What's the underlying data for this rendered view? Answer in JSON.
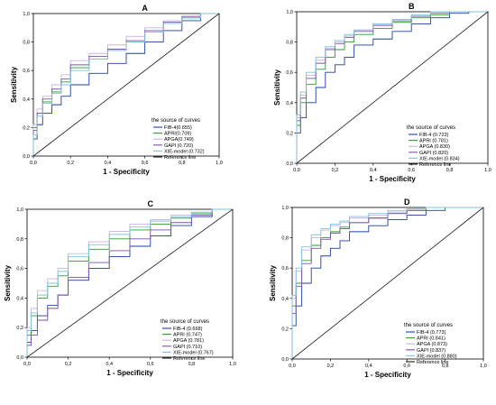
{
  "figure": {
    "title": "",
    "colors": {
      "FIB-4": "#1f3fa8",
      "APRI": "#2e9a2e",
      "APGA": "#c8b3e0",
      "GAPI": "#7a52a8",
      "XIE-model": "#7fc3dc",
      "Reference line": "#1a1a1a"
    }
  },
  "chart_data": [
    {
      "type": "line",
      "panel": "A",
      "xlabel": "1 - Specificity",
      "ylabel": "Sensitivity",
      "xlim": [
        0,
        1
      ],
      "ylim": [
        0,
        1
      ],
      "xticks": [
        "0,0",
        "0,2",
        "0,4",
        "0,6",
        "0,8",
        "1,0"
      ],
      "yticks": [
        "0,0",
        "0,2",
        "0,4",
        "0,6",
        "0,8",
        "1,0"
      ],
      "legend_title": "the source of curves",
      "legend_position": "bottom-right",
      "series": [
        {
          "name": "FIB-4(0.655)",
          "key": "FIB-4",
          "x": [
            0,
            0.02,
            0.05,
            0.1,
            0.15,
            0.2,
            0.3,
            0.4,
            0.5,
            0.6,
            0.7,
            0.8,
            0.9,
            1.0
          ],
          "y": [
            0,
            0.12,
            0.22,
            0.3,
            0.36,
            0.42,
            0.5,
            0.58,
            0.65,
            0.72,
            0.8,
            0.88,
            0.95,
            1.0
          ]
        },
        {
          "name": "APRI(0.709)",
          "key": "APRI",
          "x": [
            0,
            0.02,
            0.05,
            0.1,
            0.15,
            0.2,
            0.3,
            0.4,
            0.5,
            0.6,
            0.7,
            0.8,
            0.9,
            1.0
          ],
          "y": [
            0,
            0.2,
            0.3,
            0.38,
            0.45,
            0.52,
            0.62,
            0.68,
            0.74,
            0.8,
            0.87,
            0.93,
            0.97,
            1.0
          ]
        },
        {
          "name": "APGA(0.749)",
          "key": "APGA",
          "x": [
            0,
            0.02,
            0.05,
            0.1,
            0.15,
            0.2,
            0.3,
            0.4,
            0.5,
            0.6,
            0.7,
            0.8,
            0.9,
            1.0
          ],
          "y": [
            0,
            0.22,
            0.33,
            0.42,
            0.5,
            0.57,
            0.67,
            0.72,
            0.78,
            0.84,
            0.9,
            0.95,
            0.98,
            1.0
          ]
        },
        {
          "name": "GAPI (0.720)",
          "key": "GAPI",
          "x": [
            0,
            0.02,
            0.05,
            0.1,
            0.15,
            0.2,
            0.3,
            0.4,
            0.5,
            0.6,
            0.7,
            0.8,
            0.9,
            1.0
          ],
          "y": [
            0,
            0.18,
            0.3,
            0.4,
            0.47,
            0.54,
            0.64,
            0.7,
            0.75,
            0.81,
            0.88,
            0.94,
            0.98,
            1.0
          ]
        },
        {
          "name": "XIE-model (0.732)",
          "key": "XIE-model",
          "x": [
            0,
            0.02,
            0.05,
            0.1,
            0.15,
            0.2,
            0.3,
            0.4,
            0.5,
            0.6,
            0.7,
            0.8,
            0.9,
            1.0
          ],
          "y": [
            0,
            0.15,
            0.28,
            0.37,
            0.44,
            0.5,
            0.6,
            0.68,
            0.74,
            0.8,
            0.87,
            0.93,
            0.97,
            1.0
          ]
        },
        {
          "name": "Reference line",
          "key": "Reference line",
          "x": [
            0,
            1
          ],
          "y": [
            0,
            1
          ]
        }
      ]
    },
    {
      "type": "line",
      "panel": "B",
      "xlabel": "1 - Specificity",
      "ylabel": "Sensitivity",
      "xlim": [
        0,
        1
      ],
      "ylim": [
        0,
        1
      ],
      "xticks": [
        "0,0",
        "0,2",
        "0,4",
        "0,6",
        "0,8",
        "1,0"
      ],
      "yticks": [
        "0,0",
        "0,2",
        "0,4",
        "0,6",
        "0,8",
        "1,0"
      ],
      "legend_title": "the source of curves",
      "legend_position": "bottom-right",
      "series": [
        {
          "name": "FIB-4 (0.723)",
          "key": "FIB-4",
          "x": [
            0,
            0.02,
            0.05,
            0.1,
            0.15,
            0.2,
            0.25,
            0.3,
            0.4,
            0.5,
            0.6,
            0.7,
            0.8,
            0.9,
            1.0
          ],
          "y": [
            0,
            0.2,
            0.3,
            0.4,
            0.5,
            0.6,
            0.65,
            0.7,
            0.78,
            0.82,
            0.87,
            0.92,
            0.96,
            0.99,
            1.0
          ]
        },
        {
          "name": "APRI (0.781)",
          "key": "APRI",
          "x": [
            0,
            0.02,
            0.05,
            0.1,
            0.15,
            0.2,
            0.25,
            0.3,
            0.4,
            0.5,
            0.6,
            0.7,
            0.8,
            0.9,
            1.0
          ],
          "y": [
            0,
            0.25,
            0.4,
            0.52,
            0.62,
            0.7,
            0.75,
            0.8,
            0.85,
            0.89,
            0.93,
            0.96,
            0.98,
            1.0,
            1.0
          ]
        },
        {
          "name": "APGA (0.830)",
          "key": "APGA",
          "x": [
            0,
            0.02,
            0.05,
            0.1,
            0.15,
            0.2,
            0.25,
            0.3,
            0.4,
            0.5,
            0.6,
            0.7,
            0.8,
            0.9,
            1.0
          ],
          "y": [
            0,
            0.3,
            0.45,
            0.58,
            0.68,
            0.76,
            0.8,
            0.84,
            0.88,
            0.92,
            0.95,
            0.97,
            1.0,
            1.0,
            1.0
          ]
        },
        {
          "name": "GAPI (0.820)",
          "key": "GAPI",
          "x": [
            0,
            0.02,
            0.05,
            0.1,
            0.15,
            0.2,
            0.25,
            0.3,
            0.4,
            0.5,
            0.6,
            0.7,
            0.8,
            0.9,
            1.0
          ],
          "y": [
            0,
            0.28,
            0.43,
            0.56,
            0.66,
            0.75,
            0.79,
            0.83,
            0.87,
            0.91,
            0.94,
            0.97,
            0.99,
            1.0,
            1.0
          ]
        },
        {
          "name": "XIE-model (0.834)",
          "key": "XIE-model",
          "x": [
            0,
            0.02,
            0.05,
            0.1,
            0.15,
            0.2,
            0.25,
            0.3,
            0.4,
            0.5,
            0.6,
            0.7,
            0.8,
            0.9,
            1.0
          ],
          "y": [
            0,
            0.32,
            0.47,
            0.6,
            0.7,
            0.77,
            0.81,
            0.85,
            0.88,
            0.92,
            0.95,
            0.98,
            1.0,
            1.0,
            1.0
          ]
        },
        {
          "name": "Reference line",
          "key": "Reference line",
          "x": [
            0,
            1
          ],
          "y": [
            0,
            1
          ]
        }
      ]
    },
    {
      "type": "line",
      "panel": "C",
      "xlabel": "1 - Specificity",
      "ylabel": "Sensitivity",
      "xlim": [
        0,
        1
      ],
      "ylim": [
        0,
        1
      ],
      "xticks": [
        "0,0",
        "0,2",
        "0,4",
        "0,6",
        "0,8",
        "1,0"
      ],
      "yticks": [
        "0,0",
        "0,2",
        "0,4",
        "0,6",
        "0,8",
        "1,0"
      ],
      "legend_title": "the source of curves",
      "legend_position": "bottom-right",
      "series": [
        {
          "name": "FIB-4 (0.668)",
          "key": "FIB-4",
          "x": [
            0,
            0.02,
            0.05,
            0.1,
            0.15,
            0.2,
            0.3,
            0.4,
            0.5,
            0.6,
            0.7,
            0.8,
            0.9,
            1.0
          ],
          "y": [
            0,
            0.1,
            0.18,
            0.28,
            0.35,
            0.42,
            0.52,
            0.6,
            0.68,
            0.75,
            0.82,
            0.89,
            0.95,
            1.0
          ]
        },
        {
          "name": "APRI (0.747)",
          "key": "APRI",
          "x": [
            0,
            0.02,
            0.05,
            0.1,
            0.15,
            0.2,
            0.3,
            0.4,
            0.5,
            0.6,
            0.7,
            0.8,
            0.9,
            1.0
          ],
          "y": [
            0,
            0.15,
            0.28,
            0.4,
            0.48,
            0.55,
            0.65,
            0.73,
            0.8,
            0.86,
            0.9,
            0.94,
            0.97,
            1.0
          ]
        },
        {
          "name": "APGA (0.781)",
          "key": "APGA",
          "x": [
            0,
            0.02,
            0.05,
            0.1,
            0.15,
            0.2,
            0.3,
            0.4,
            0.5,
            0.6,
            0.7,
            0.8,
            0.9,
            1.0
          ],
          "y": [
            0,
            0.2,
            0.33,
            0.45,
            0.53,
            0.6,
            0.7,
            0.78,
            0.85,
            0.9,
            0.93,
            0.96,
            0.98,
            1.0
          ]
        },
        {
          "name": "GAPI (0.710)",
          "key": "GAPI",
          "x": [
            0,
            0.02,
            0.05,
            0.1,
            0.15,
            0.2,
            0.3,
            0.4,
            0.5,
            0.6,
            0.7,
            0.8,
            0.9,
            1.0
          ],
          "y": [
            0,
            0.08,
            0.15,
            0.25,
            0.33,
            0.42,
            0.54,
            0.64,
            0.72,
            0.8,
            0.86,
            0.91,
            0.96,
            1.0
          ]
        },
        {
          "name": "XIE-model (0.767)",
          "key": "XIE-model",
          "x": [
            0,
            0.02,
            0.05,
            0.1,
            0.15,
            0.2,
            0.3,
            0.4,
            0.5,
            0.6,
            0.7,
            0.8,
            0.9,
            1.0
          ],
          "y": [
            0,
            0.18,
            0.3,
            0.42,
            0.5,
            0.58,
            0.68,
            0.76,
            0.83,
            0.88,
            0.92,
            0.95,
            0.98,
            1.0
          ]
        },
        {
          "name": "Reference line",
          "key": "Reference line",
          "x": [
            0,
            1
          ],
          "y": [
            0,
            1
          ]
        }
      ]
    },
    {
      "type": "line",
      "panel": "D",
      "xlabel": "1 - Specificity",
      "ylabel": "Sensitivity",
      "xlim": [
        0,
        1
      ],
      "ylim": [
        0,
        1
      ],
      "xticks": [
        "0,0",
        "0,2",
        "0,4",
        "0,6",
        "0,8",
        "1,0"
      ],
      "yticks": [
        "0,0",
        "0,2",
        "0,4",
        "0,6",
        "0,8",
        "1,0"
      ],
      "legend_title": "the source of curves",
      "legend_position": "bottom-right",
      "series": [
        {
          "name": "FIB-4 (0.773)",
          "key": "FIB-4",
          "x": [
            0,
            0.02,
            0.05,
            0.1,
            0.15,
            0.2,
            0.25,
            0.3,
            0.4,
            0.5,
            0.6,
            0.7,
            0.8,
            0.9,
            1.0
          ],
          "y": [
            0,
            0.22,
            0.35,
            0.5,
            0.6,
            0.68,
            0.73,
            0.78,
            0.84,
            0.88,
            0.92,
            0.95,
            0.98,
            1.0,
            1.0
          ]
        },
        {
          "name": "APRI (0.841)",
          "key": "APRI",
          "x": [
            0,
            0.02,
            0.05,
            0.1,
            0.15,
            0.2,
            0.25,
            0.3,
            0.4,
            0.5,
            0.6,
            0.7,
            0.8,
            0.9,
            1.0
          ],
          "y": [
            0,
            0.35,
            0.5,
            0.65,
            0.75,
            0.8,
            0.84,
            0.87,
            0.9,
            0.93,
            0.96,
            0.98,
            1.0,
            1.0,
            1.0
          ]
        },
        {
          "name": "APGA (0.873)",
          "key": "APGA",
          "x": [
            0,
            0.02,
            0.05,
            0.1,
            0.15,
            0.2,
            0.25,
            0.3,
            0.4,
            0.5,
            0.6,
            0.7,
            0.8,
            0.9,
            1.0
          ],
          "y": [
            0,
            0.4,
            0.58,
            0.72,
            0.8,
            0.85,
            0.88,
            0.9,
            0.93,
            0.95,
            0.97,
            0.99,
            1.0,
            1.0,
            1.0
          ]
        },
        {
          "name": "GAPI (0.837)",
          "key": "GAPI",
          "x": [
            0,
            0.02,
            0.05,
            0.1,
            0.15,
            0.2,
            0.25,
            0.3,
            0.4,
            0.5,
            0.6,
            0.7,
            0.8,
            0.9,
            1.0
          ],
          "y": [
            0,
            0.3,
            0.48,
            0.63,
            0.73,
            0.79,
            0.83,
            0.86,
            0.9,
            0.93,
            0.96,
            0.98,
            1.0,
            1.0,
            1.0
          ]
        },
        {
          "name": "XIE-model (0.880)",
          "key": "XIE-model",
          "x": [
            0,
            0.02,
            0.05,
            0.1,
            0.15,
            0.2,
            0.25,
            0.3,
            0.4,
            0.5,
            0.6,
            0.7,
            0.8,
            0.9,
            1.0
          ],
          "y": [
            0,
            0.42,
            0.6,
            0.74,
            0.82,
            0.86,
            0.89,
            0.91,
            0.94,
            0.96,
            0.98,
            0.99,
            1.0,
            1.0,
            1.0
          ]
        },
        {
          "name": "Reference line",
          "key": "Reference line",
          "x": [
            0,
            1
          ],
          "y": [
            0,
            1
          ]
        }
      ]
    }
  ]
}
